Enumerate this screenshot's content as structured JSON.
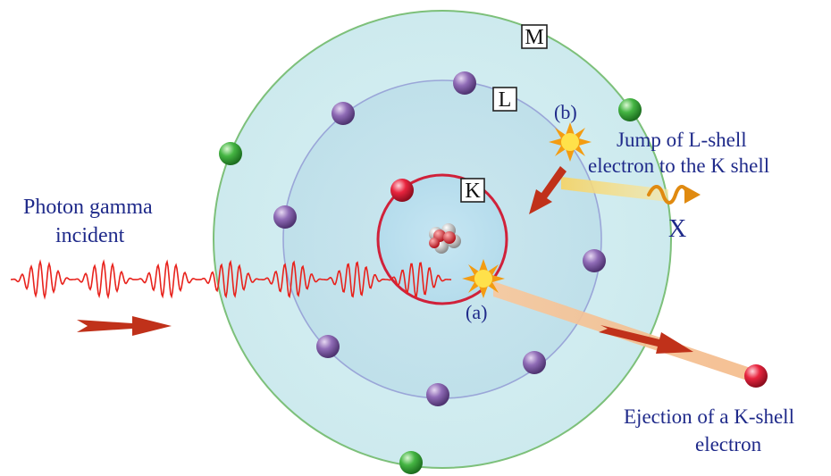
{
  "shells": {
    "k": "K",
    "l": "L",
    "m": "M"
  },
  "labels": {
    "photon_line1": "Photon gamma",
    "photon_line2": "incident",
    "step_a": "(a)",
    "step_b": "(b)",
    "jump_line1": "Jump of L-shell",
    "jump_line2": "electron to the K shell",
    "xray": "X",
    "eject_line1": "Ejection of a K-shell",
    "eject_line2": "electron"
  },
  "colors": {
    "text_blue": "#1f2a8a",
    "wave_red": "#e8221c",
    "arrow_red": "#c0311a",
    "k_shell": "#d0213a",
    "l_shell": "#9aa6d8",
    "m_shell": "#7dc07a",
    "l_electron": "#7b5aa0",
    "m_electron": "#3aa83a",
    "k_electron": "#e02040",
    "xray_orange": "#e08a10"
  }
}
